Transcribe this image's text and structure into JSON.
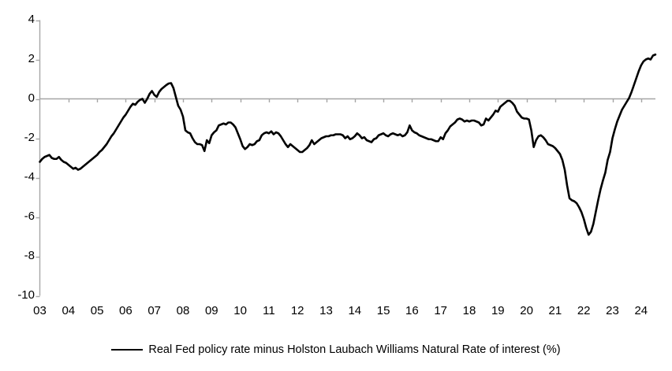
{
  "chart_data": {
    "type": "line",
    "title": "",
    "legend_position": "bottom-center",
    "grid": "zero-line-only",
    "background_color": "#ffffff",
    "axis_color": "#a6a6a6",
    "ylim": [
      -10,
      4
    ],
    "y_tick_values": [
      4,
      2,
      0,
      -2,
      -4,
      -6,
      -8,
      -10
    ],
    "y_tick_labels": [
      "4",
      "2",
      "0",
      "-2",
      "-4",
      "-6",
      "-8",
      "-10"
    ],
    "x_tick_labels": [
      "03",
      "04",
      "05",
      "06",
      "07",
      "08",
      "09",
      "10",
      "11",
      "12",
      "13",
      "14",
      "15",
      "16",
      "17",
      "18",
      "19",
      "20",
      "21",
      "22",
      "23",
      "24"
    ],
    "x_start_year": 2003,
    "x_frequency": "monthly",
    "series": [
      {
        "name": "Real Fed policy rate minus Holston Laubach Williams Natural Rate of interest (%)",
        "color": "#000000",
        "start": "2003-01",
        "end": "2024-07",
        "values": [
          -3.2,
          -3.05,
          -2.95,
          -2.9,
          -2.85,
          -3.0,
          -3.05,
          -3.05,
          -2.95,
          -3.1,
          -3.2,
          -3.25,
          -3.35,
          -3.45,
          -3.55,
          -3.5,
          -3.6,
          -3.55,
          -3.45,
          -3.35,
          -3.25,
          -3.15,
          -3.05,
          -2.95,
          -2.85,
          -2.7,
          -2.6,
          -2.45,
          -2.3,
          -2.1,
          -1.9,
          -1.75,
          -1.55,
          -1.35,
          -1.15,
          -0.95,
          -0.8,
          -0.6,
          -0.4,
          -0.25,
          -0.3,
          -0.15,
          -0.05,
          0.0,
          -0.2,
          0.0,
          0.25,
          0.4,
          0.2,
          0.1,
          0.35,
          0.5,
          0.6,
          0.7,
          0.78,
          0.8,
          0.55,
          0.1,
          -0.35,
          -0.55,
          -0.9,
          -1.6,
          -1.7,
          -1.75,
          -2.0,
          -2.2,
          -2.3,
          -2.3,
          -2.35,
          -2.65,
          -2.1,
          -2.25,
          -1.85,
          -1.7,
          -1.6,
          -1.35,
          -1.3,
          -1.25,
          -1.3,
          -1.2,
          -1.2,
          -1.3,
          -1.45,
          -1.75,
          -2.05,
          -2.4,
          -2.55,
          -2.45,
          -2.3,
          -2.35,
          -2.3,
          -2.15,
          -2.1,
          -1.85,
          -1.75,
          -1.7,
          -1.75,
          -1.65,
          -1.8,
          -1.7,
          -1.75,
          -1.9,
          -2.1,
          -2.3,
          -2.45,
          -2.3,
          -2.4,
          -2.5,
          -2.6,
          -2.7,
          -2.7,
          -2.6,
          -2.5,
          -2.35,
          -2.1,
          -2.3,
          -2.2,
          -2.1,
          -2.0,
          -1.95,
          -1.9,
          -1.9,
          -1.85,
          -1.85,
          -1.8,
          -1.8,
          -1.8,
          -1.85,
          -2.0,
          -1.9,
          -2.05,
          -2.0,
          -1.9,
          -1.75,
          -1.85,
          -2.0,
          -1.95,
          -2.1,
          -2.15,
          -2.2,
          -2.05,
          -2.0,
          -1.85,
          -1.8,
          -1.75,
          -1.85,
          -1.9,
          -1.8,
          -1.75,
          -1.8,
          -1.85,
          -1.8,
          -1.9,
          -1.85,
          -1.7,
          -1.35,
          -1.6,
          -1.7,
          -1.75,
          -1.85,
          -1.9,
          -1.95,
          -2.0,
          -2.05,
          -2.05,
          -2.1,
          -2.15,
          -2.15,
          -1.95,
          -2.05,
          -1.75,
          -1.6,
          -1.4,
          -1.3,
          -1.2,
          -1.05,
          -1.0,
          -1.05,
          -1.15,
          -1.1,
          -1.15,
          -1.1,
          -1.1,
          -1.15,
          -1.2,
          -1.35,
          -1.3,
          -1.0,
          -1.1,
          -0.95,
          -0.8,
          -0.6,
          -0.65,
          -0.4,
          -0.3,
          -0.2,
          -0.1,
          -0.1,
          -0.2,
          -0.35,
          -0.65,
          -0.8,
          -0.95,
          -1.0,
          -1.0,
          -1.05,
          -1.6,
          -2.45,
          -2.1,
          -1.9,
          -1.85,
          -1.95,
          -2.1,
          -2.3,
          -2.35,
          -2.4,
          -2.5,
          -2.65,
          -2.8,
          -3.1,
          -3.6,
          -4.4,
          -5.05,
          -5.15,
          -5.2,
          -5.3,
          -5.5,
          -5.75,
          -6.1,
          -6.55,
          -6.9,
          -6.75,
          -6.35,
          -5.75,
          -5.15,
          -4.6,
          -4.15,
          -3.75,
          -3.1,
          -2.7,
          -2.0,
          -1.55,
          -1.15,
          -0.85,
          -0.55,
          -0.35,
          -0.15,
          0.05,
          0.35,
          0.7,
          1.05,
          1.4,
          1.7,
          1.9,
          2.0,
          2.05,
          2.0,
          2.2,
          2.25
        ]
      }
    ]
  }
}
